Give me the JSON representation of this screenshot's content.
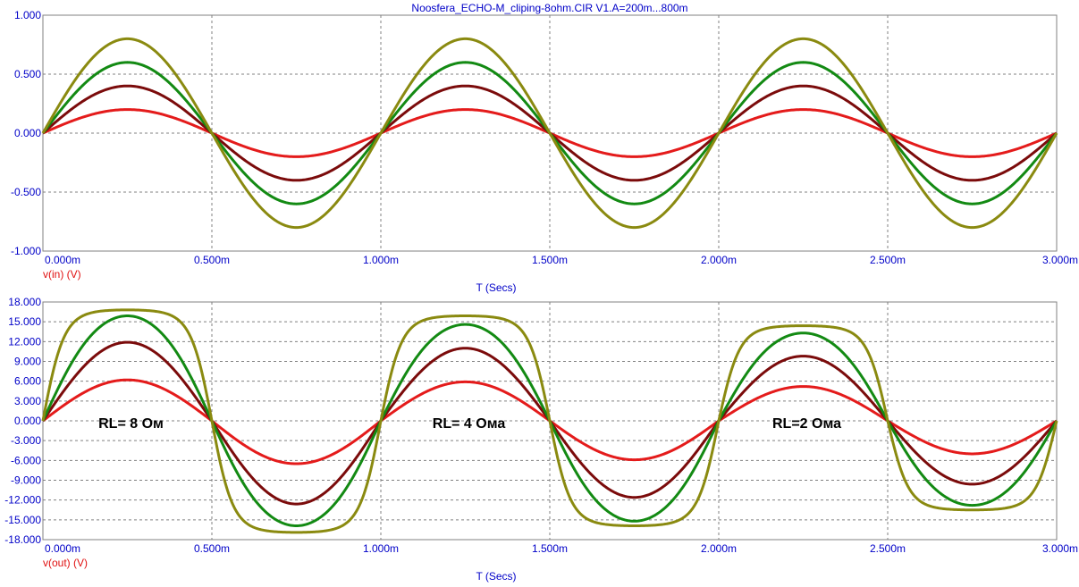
{
  "window": {
    "title": "Noosfera_ECHO-M_cliping-8ohm.CIR V1.A=200m...800m"
  },
  "colors": {
    "background": "#ffffff",
    "grid": "#808080",
    "axis_text": "#0000c8",
    "ylabel_text": "#e01010",
    "series": [
      "#e41b1b",
      "#7b0b0b",
      "#138a13",
      "#8a8a10"
    ]
  },
  "chart_data": [
    {
      "type": "line",
      "title": "Noosfera_ECHO-M_cliping-8ohm.CIR V1.A=200m...800m",
      "xlabel": "T (Secs)",
      "ylabel": "v(in) (V)",
      "xlim": [
        0,
        3
      ],
      "ylim": [
        -1,
        1
      ],
      "grid": true,
      "x_ticks": [
        "0.000m",
        "0.500m",
        "1.000m",
        "1.500m",
        "2.000m",
        "2.500m",
        "3.000m"
      ],
      "y_ticks": [
        "1.000",
        "0.500",
        "0.000",
        "-0.500",
        "-1.000"
      ],
      "y_tick_values": [
        1,
        0.5,
        0,
        -0.5,
        -1
      ],
      "x_unit": "ms",
      "waveform": "sine",
      "frequency_khz": 1,
      "series": [
        {
          "amplitude": 0.2,
          "color": "#e41b1b"
        },
        {
          "amplitude": 0.4,
          "color": "#7b0b0b"
        },
        {
          "amplitude": 0.6,
          "color": "#138a13"
        },
        {
          "amplitude": 0.8,
          "color": "#8a8a10"
        }
      ]
    },
    {
      "type": "line",
      "xlabel": "T (Secs)",
      "ylabel": "v(out) (V)",
      "xlim": [
        0,
        3
      ],
      "ylim": [
        -18,
        18
      ],
      "grid": true,
      "x_ticks": [
        "0.000m",
        "0.500m",
        "1.000m",
        "1.500m",
        "2.000m",
        "2.500m",
        "3.000m"
      ],
      "y_ticks": [
        "18.000",
        "15.000",
        "12.000",
        "9.000",
        "6.000",
        "3.000",
        "0.000",
        "-3.000",
        "-6.000",
        "-9.000",
        "-12.000",
        "-15.000",
        "-18.000"
      ],
      "y_tick_values": [
        18,
        15,
        12,
        9,
        6,
        3,
        0,
        -3,
        -6,
        -9,
        -12,
        -15,
        -18
      ],
      "x_unit": "ms",
      "waveform": "sine, soft-clipped at higher amplitudes",
      "segments_note": "load changes every 1 ms",
      "annotations": [
        {
          "text": "RL= 8 Ом",
          "x": 0.25,
          "y": 0
        },
        {
          "text": "RL= 4 Ома",
          "x": 1.25,
          "y": 0
        },
        {
          "text": "RL=2 Ома",
          "x": 2.25,
          "y": 0
        }
      ],
      "series": [
        {
          "color": "#e41b1b",
          "peaks": [
            [
              6.2,
              -6.5
            ],
            [
              5.9,
              -5.9
            ],
            [
              5.2,
              -5.0
            ]
          ],
          "clip": [
            0,
            0,
            0
          ]
        },
        {
          "color": "#7b0b0b",
          "peaks": [
            [
              11.9,
              -12.6
            ],
            [
              11.0,
              -11.6
            ],
            [
              9.8,
              -9.6
            ]
          ],
          "clip": [
            0.15,
            0.15,
            0.15
          ]
        },
        {
          "color": "#138a13",
          "peaks": [
            [
              15.9,
              -15.9
            ],
            [
              14.6,
              -15.2
            ],
            [
              13.3,
              -12.8
            ]
          ],
          "clip": [
            0.6,
            0.6,
            0.6
          ]
        },
        {
          "color": "#8a8a10",
          "peaks": [
            [
              16.8,
              -16.9
            ],
            [
              15.9,
              -15.9
            ],
            [
              14.4,
              -13.5
            ]
          ],
          "clip": [
            2.5,
            2.5,
            2.5
          ]
        }
      ]
    }
  ]
}
